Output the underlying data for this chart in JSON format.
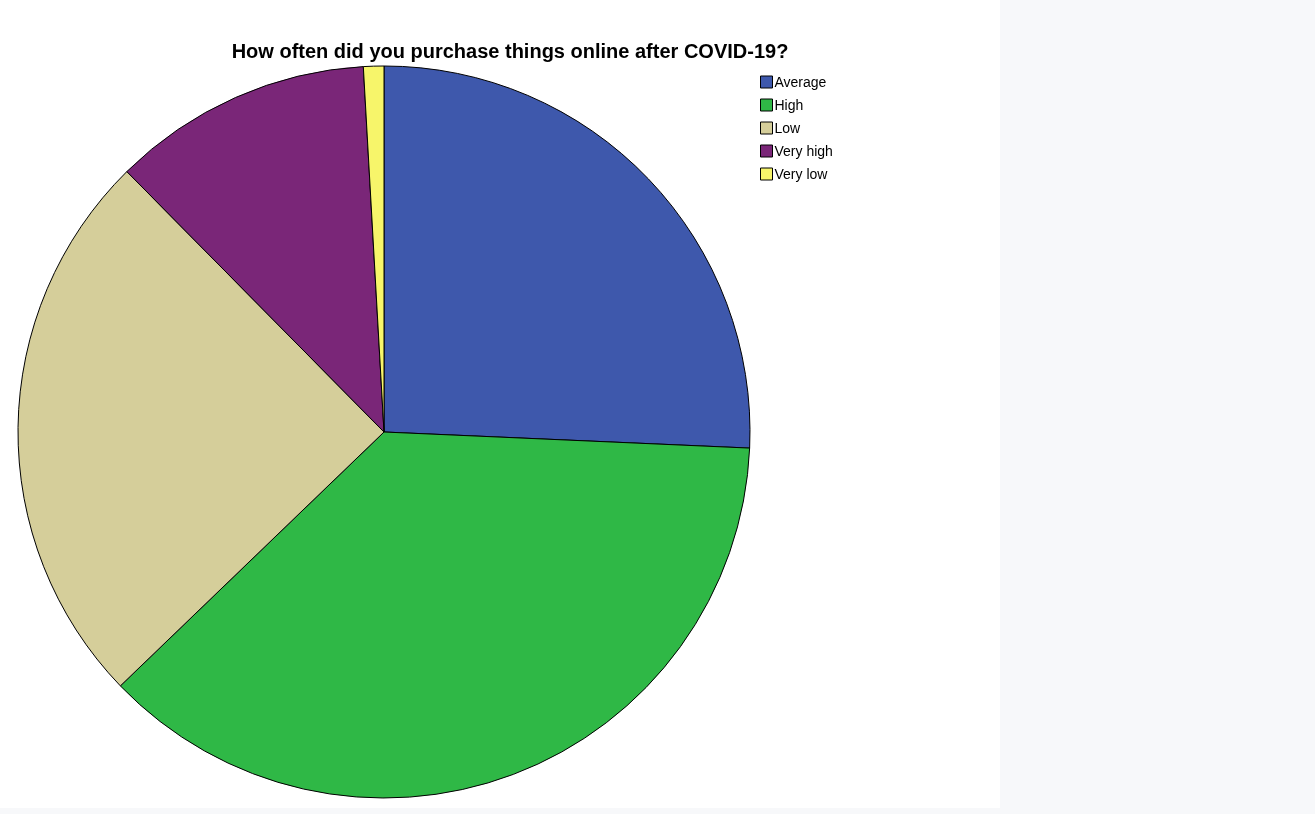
{
  "chart_data": {
    "type": "pie",
    "title": "How often did you purchase things online after COVID-19?",
    "categories": [
      "Average",
      "High",
      "Low",
      "Very high",
      "Very low"
    ],
    "values": [
      25.7,
      37.1,
      24.8,
      11.5,
      0.9
    ],
    "colors": [
      "#3e58ac",
      "#2fb846",
      "#d5ce9a",
      "#7a2678",
      "#f7f56a"
    ],
    "legend": "top right"
  }
}
